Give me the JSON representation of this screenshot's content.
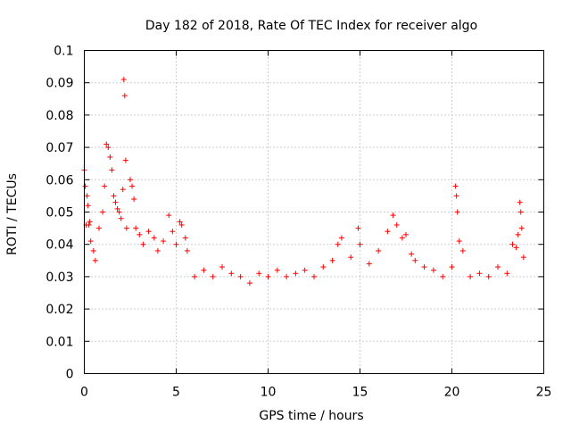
{
  "chart_data": {
    "type": "scatter",
    "title": "Day 182 of 2018, Rate Of TEC Index for receiver algo",
    "xlabel": "GPS time / hours",
    "ylabel": "ROTI / TECUs",
    "xlim": [
      0,
      25
    ],
    "ylim": [
      0,
      0.1
    ],
    "grid": true,
    "marker": "+",
    "color": "#ff0000",
    "x_ticks": [
      {
        "value": 0,
        "label": "0"
      },
      {
        "value": 5,
        "label": "5"
      },
      {
        "value": 10,
        "label": "10"
      },
      {
        "value": 15,
        "label": "15"
      },
      {
        "value": 20,
        "label": "20"
      },
      {
        "value": 25,
        "label": "25"
      }
    ],
    "y_ticks": [
      {
        "value": 0,
        "label": "0"
      },
      {
        "value": 0.01,
        "label": "0.01"
      },
      {
        "value": 0.02,
        "label": "0.02"
      },
      {
        "value": 0.03,
        "label": "0.03"
      },
      {
        "value": 0.04,
        "label": "0.04"
      },
      {
        "value": 0.05,
        "label": "0.05"
      },
      {
        "value": 0.06,
        "label": "0.06"
      },
      {
        "value": 0.07,
        "label": "0.07"
      },
      {
        "value": 0.08,
        "label": "0.08"
      },
      {
        "value": 0.09,
        "label": "0.09"
      },
      {
        "value": 0.1,
        "label": "0.1"
      }
    ],
    "series": [
      {
        "name": "ROTI",
        "points": [
          [
            0.0,
            0.063
          ],
          [
            0.05,
            0.058
          ],
          [
            0.1,
            0.046
          ],
          [
            0.15,
            0.055
          ],
          [
            0.2,
            0.052
          ],
          [
            0.25,
            0.046
          ],
          [
            0.3,
            0.047
          ],
          [
            0.35,
            0.041
          ],
          [
            0.5,
            0.038
          ],
          [
            0.6,
            0.035
          ],
          [
            0.8,
            0.045
          ],
          [
            1.0,
            0.05
          ],
          [
            1.1,
            0.058
          ],
          [
            1.2,
            0.071
          ],
          [
            1.3,
            0.07
          ],
          [
            1.4,
            0.067
          ],
          [
            1.5,
            0.063
          ],
          [
            1.6,
            0.055
          ],
          [
            1.7,
            0.053
          ],
          [
            1.8,
            0.051
          ],
          [
            1.9,
            0.05
          ],
          [
            2.0,
            0.048
          ],
          [
            2.1,
            0.057
          ],
          [
            2.15,
            0.091
          ],
          [
            2.2,
            0.086
          ],
          [
            2.25,
            0.066
          ],
          [
            2.3,
            0.045
          ],
          [
            2.5,
            0.06
          ],
          [
            2.6,
            0.058
          ],
          [
            2.7,
            0.054
          ],
          [
            2.8,
            0.045
          ],
          [
            3.0,
            0.043
          ],
          [
            3.2,
            0.04
          ],
          [
            3.5,
            0.044
          ],
          [
            3.8,
            0.042
          ],
          [
            4.0,
            0.038
          ],
          [
            4.3,
            0.041
          ],
          [
            4.6,
            0.049
          ],
          [
            4.8,
            0.044
          ],
          [
            5.0,
            0.04
          ],
          [
            5.2,
            0.047
          ],
          [
            5.3,
            0.046
          ],
          [
            5.5,
            0.042
          ],
          [
            5.6,
            0.038
          ],
          [
            6.0,
            0.03
          ],
          [
            6.5,
            0.032
          ],
          [
            7.0,
            0.03
          ],
          [
            7.5,
            0.033
          ],
          [
            8.0,
            0.031
          ],
          [
            8.5,
            0.03
          ],
          [
            9.0,
            0.028
          ],
          [
            9.5,
            0.031
          ],
          [
            10.0,
            0.03
          ],
          [
            10.5,
            0.032
          ],
          [
            11.0,
            0.03
          ],
          [
            11.5,
            0.031
          ],
          [
            12.0,
            0.032
          ],
          [
            12.5,
            0.03
          ],
          [
            13.0,
            0.033
          ],
          [
            13.5,
            0.035
          ],
          [
            13.8,
            0.04
          ],
          [
            14.0,
            0.042
          ],
          [
            14.5,
            0.036
          ],
          [
            14.9,
            0.045
          ],
          [
            15.0,
            0.04
          ],
          [
            15.5,
            0.034
          ],
          [
            16.0,
            0.038
          ],
          [
            16.5,
            0.044
          ],
          [
            16.8,
            0.049
          ],
          [
            17.0,
            0.046
          ],
          [
            17.3,
            0.042
          ],
          [
            17.5,
            0.043
          ],
          [
            17.8,
            0.037
          ],
          [
            18.0,
            0.035
          ],
          [
            18.5,
            0.033
          ],
          [
            19.0,
            0.032
          ],
          [
            19.5,
            0.03
          ],
          [
            20.0,
            0.033
          ],
          [
            20.2,
            0.058
          ],
          [
            20.25,
            0.055
          ],
          [
            20.3,
            0.05
          ],
          [
            20.4,
            0.041
          ],
          [
            20.6,
            0.038
          ],
          [
            21.0,
            0.03
          ],
          [
            21.5,
            0.031
          ],
          [
            22.0,
            0.03
          ],
          [
            22.5,
            0.033
          ],
          [
            23.0,
            0.031
          ],
          [
            23.3,
            0.04
          ],
          [
            23.5,
            0.039
          ],
          [
            23.6,
            0.043
          ],
          [
            23.7,
            0.053
          ],
          [
            23.75,
            0.05
          ],
          [
            23.8,
            0.045
          ],
          [
            23.9,
            0.036
          ]
        ]
      }
    ]
  }
}
